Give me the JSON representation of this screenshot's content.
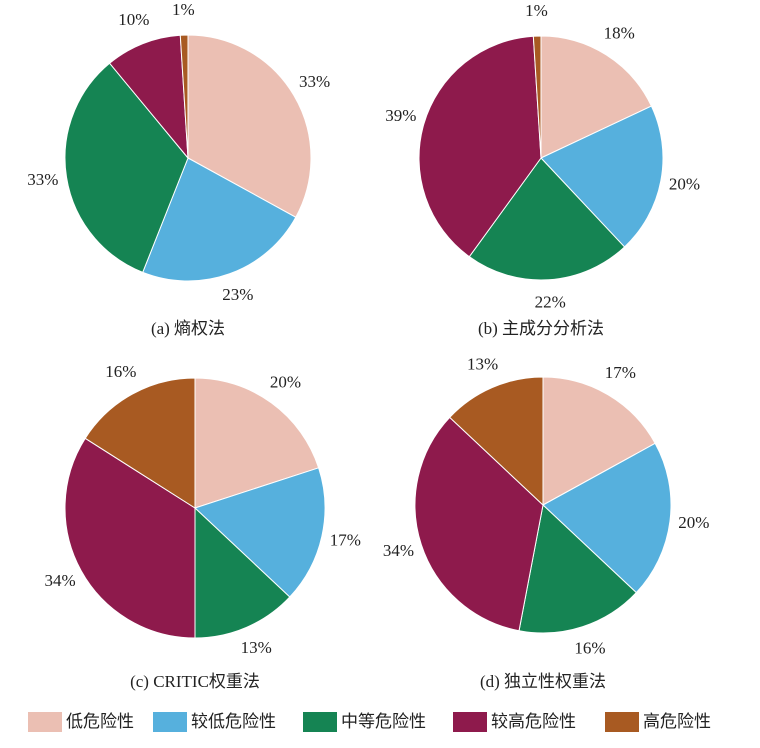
{
  "chart_data": [
    {
      "type": "pie",
      "title": "(a) 熵权法",
      "values": [
        33,
        23,
        33,
        10,
        1
      ],
      "value_labels": [
        "33%",
        "23%",
        "33%",
        "10%",
        "1%"
      ]
    },
    {
      "type": "pie",
      "title": "(b) 主成分分析法",
      "values": [
        18,
        20,
        22,
        39,
        1
      ],
      "value_labels": [
        "18%",
        "20%",
        "22%",
        "39%",
        "1%"
      ]
    },
    {
      "type": "pie",
      "title": "(c) CRITIC权重法",
      "values": [
        20,
        17,
        13,
        34,
        16
      ],
      "value_labels": [
        "20%",
        "17%",
        "13%",
        "34%",
        "16%"
      ]
    },
    {
      "type": "pie",
      "title": "(d) 独立性权重法",
      "values": [
        17,
        20,
        16,
        34,
        13
      ],
      "value_labels": [
        "17%",
        "20%",
        "16%",
        "34%",
        "13%"
      ]
    }
  ],
  "legend": {
    "categories": [
      "低危险性",
      "较低危险性",
      "中等危险性",
      "较高危险性",
      "高危险性"
    ],
    "colors": [
      "#ebbfb3",
      "#56b0dd",
      "#158453",
      "#8e1a4c",
      "#a85a22"
    ]
  }
}
